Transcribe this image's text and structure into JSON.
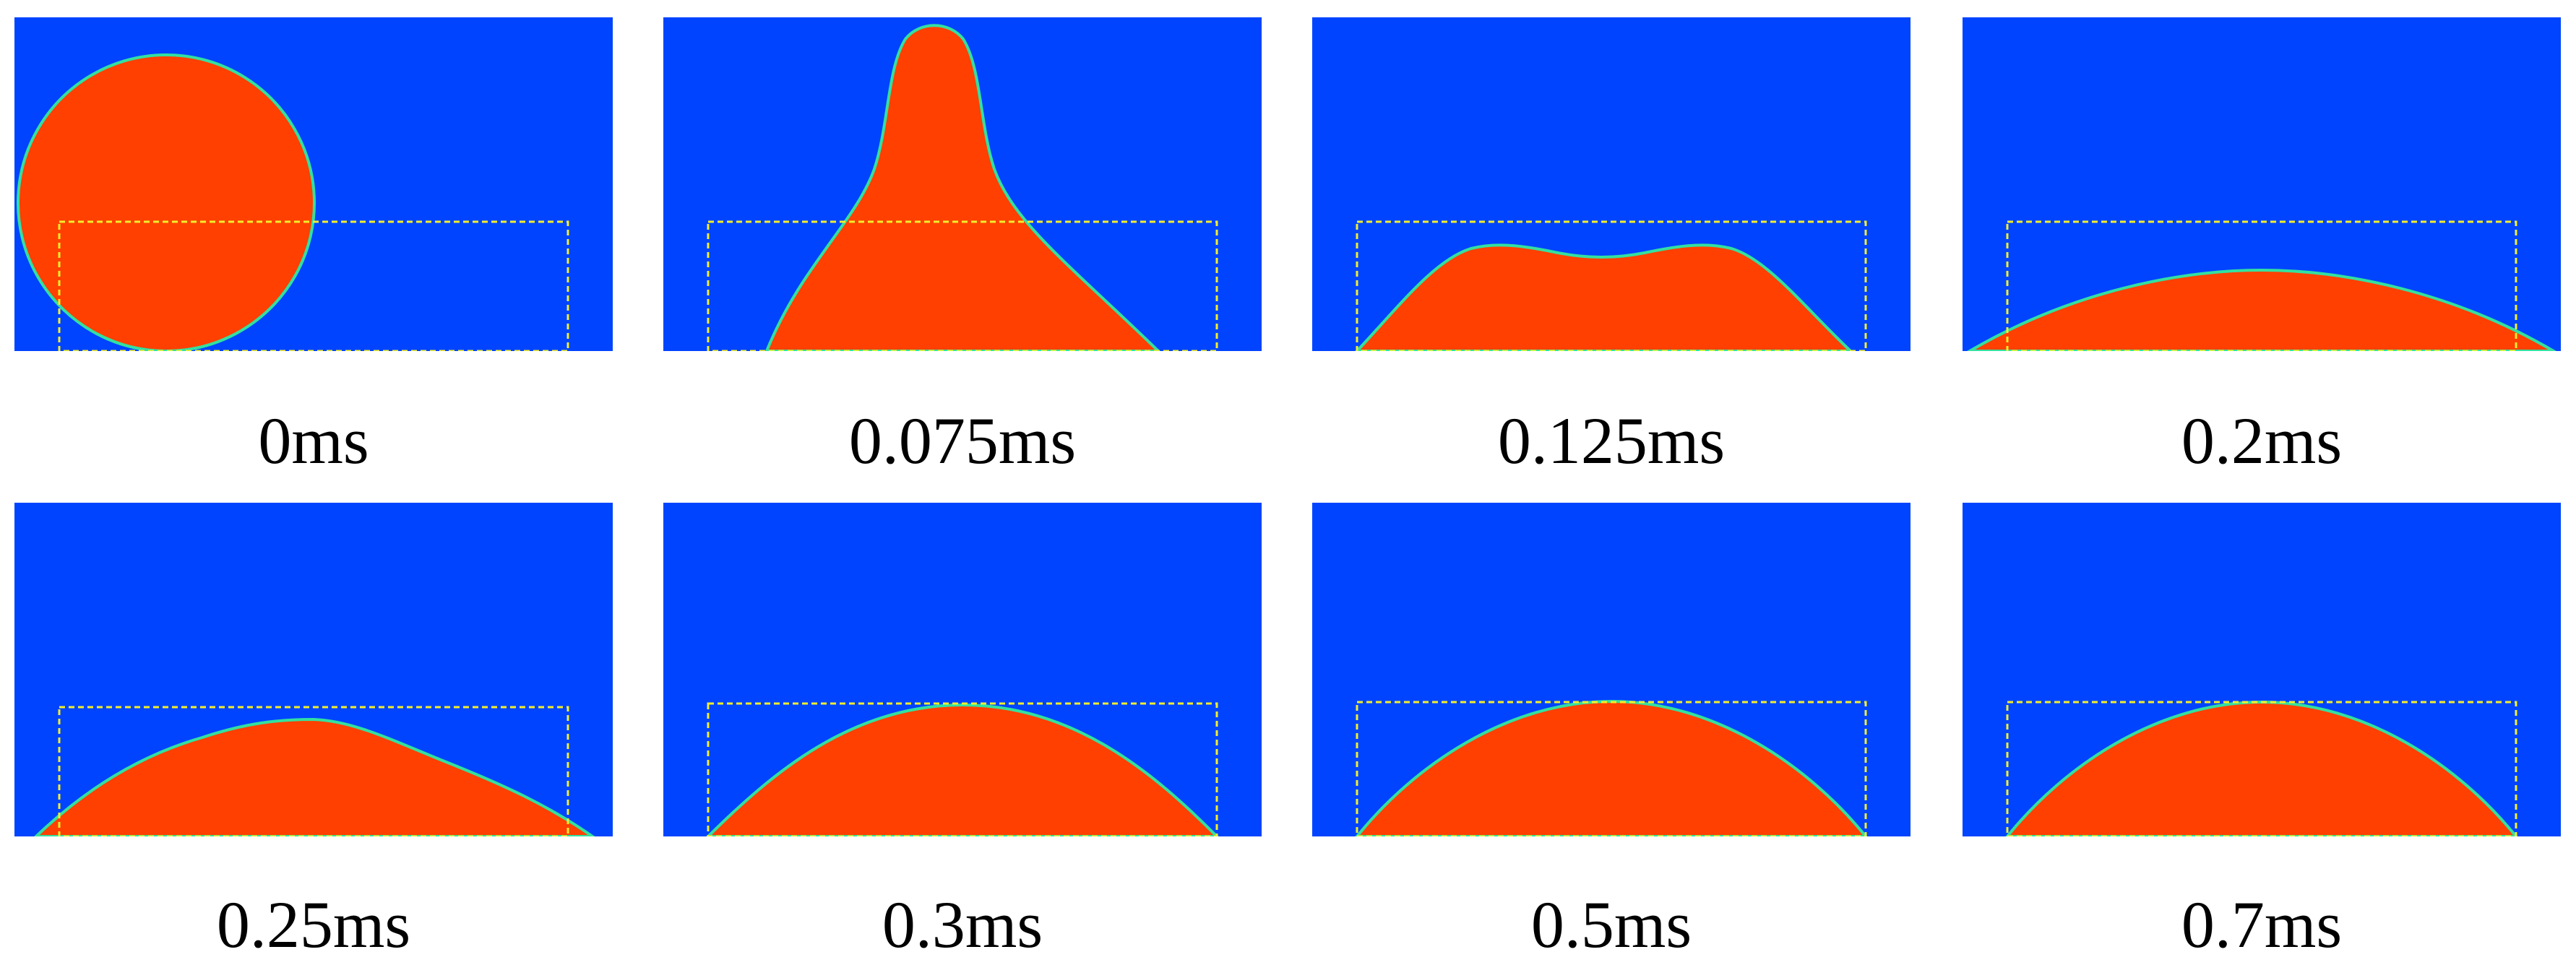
{
  "colors": {
    "background": "#0044ff",
    "droplet": "#ff4000",
    "interface": "#33e0a0",
    "frame": "#f2ee2c"
  },
  "frames": [
    {
      "time_label": "0ms",
      "shape": "sphere"
    },
    {
      "time_label": "0.075ms",
      "shape": "jet"
    },
    {
      "time_label": "0.125ms",
      "shape": "spread"
    },
    {
      "time_label": "0.2ms",
      "shape": "flat"
    },
    {
      "time_label": "0.25ms",
      "shape": "low-dome"
    },
    {
      "time_label": "0.3ms",
      "shape": "dome"
    },
    {
      "time_label": "0.5ms",
      "shape": "dome"
    },
    {
      "time_label": "0.7ms",
      "shape": "dome"
    }
  ]
}
